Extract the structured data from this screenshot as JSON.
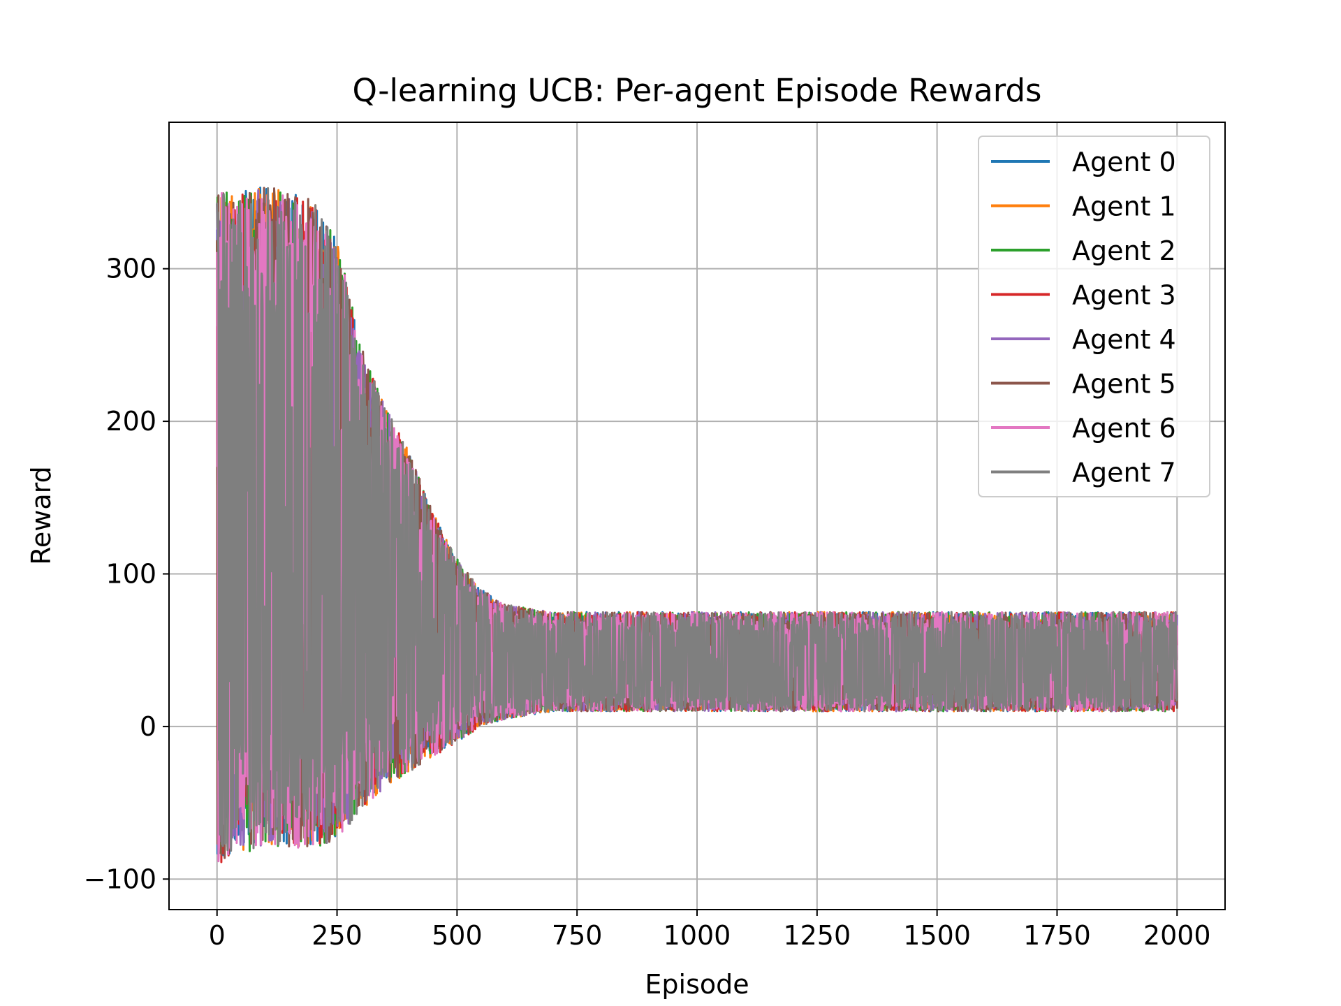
{
  "chart_data": {
    "type": "line",
    "title": "Q-learning UCB: Per-agent Episode Rewards",
    "xlabel": "Episode",
    "ylabel": "Reward",
    "xlim": [
      -100,
      2100
    ],
    "ylim": [
      -120,
      396
    ],
    "xticks": [
      0,
      250,
      500,
      750,
      1000,
      1250,
      1500,
      1750,
      2000
    ],
    "yticks": [
      -100,
      0,
      100,
      200,
      300
    ],
    "ytick_labels": [
      "−100",
      "0",
      "100",
      "200",
      "300"
    ],
    "grid": true,
    "legend_position": "top-right",
    "x": {
      "start": 0,
      "end": 2000,
      "step": 1
    },
    "envelope": {
      "episodes": [
        0,
        50,
        100,
        150,
        200,
        250,
        300,
        350,
        400,
        450,
        500,
        550,
        600,
        700,
        800,
        1000,
        1500,
        2000
      ],
      "upper": [
        350,
        350,
        355,
        350,
        345,
        320,
        250,
        210,
        180,
        140,
        110,
        90,
        80,
        75,
        75,
        75,
        75,
        75
      ],
      "lower": [
        -90,
        -85,
        -80,
        -80,
        -80,
        -75,
        -55,
        -40,
        -30,
        -20,
        -10,
        0,
        5,
        10,
        10,
        10,
        10,
        10
      ],
      "center": [
        130,
        130,
        130,
        130,
        130,
        120,
        100,
        85,
        75,
        60,
        50,
        45,
        40,
        38,
        38,
        38,
        38,
        38
      ]
    },
    "series": [
      {
        "name": "Agent 0",
        "color": "#1f77b4",
        "seed": 11
      },
      {
        "name": "Agent 1",
        "color": "#ff7f0e",
        "seed": 23
      },
      {
        "name": "Agent 2",
        "color": "#2ca02c",
        "seed": 37
      },
      {
        "name": "Agent 3",
        "color": "#d62728",
        "seed": 41
      },
      {
        "name": "Agent 4",
        "color": "#9467bd",
        "seed": 53
      },
      {
        "name": "Agent 5",
        "color": "#8c564b",
        "seed": 67
      },
      {
        "name": "Agent 6",
        "color": "#e377c2",
        "seed": 79
      },
      {
        "name": "Agent 7",
        "color": "#7f7f7f",
        "seed": 97
      }
    ]
  }
}
